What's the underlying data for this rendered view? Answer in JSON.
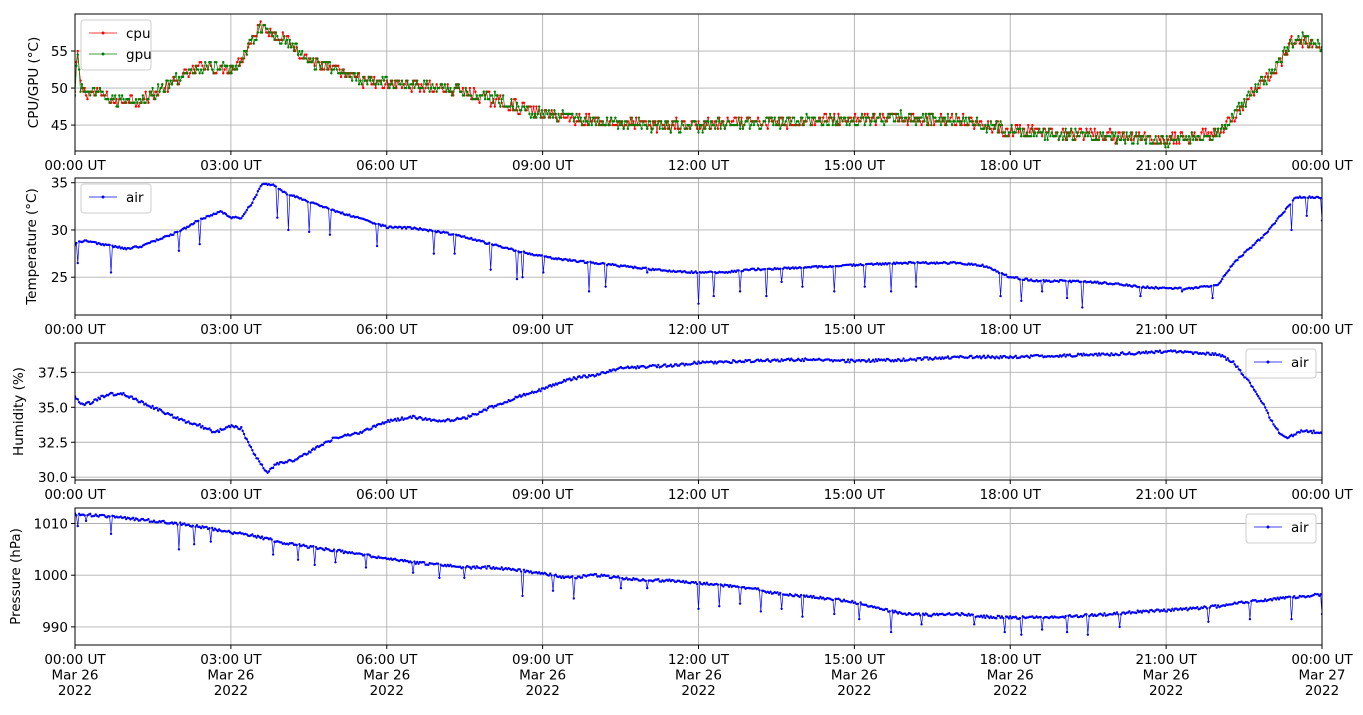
{
  "chart_data": [
    {
      "type": "line",
      "ylabel": "CPU/GPU (°C)",
      "ylim": [
        41.5,
        60.0
      ],
      "yticks": [
        45,
        50,
        55
      ],
      "ytick_labels": [
        "45",
        "50",
        "55"
      ],
      "xlim": [
        0,
        24
      ],
      "xticks": [
        0,
        3,
        6,
        9,
        12,
        15,
        18,
        21,
        24
      ],
      "xtick_labels": [
        "00:00 UT",
        "03:00 UT",
        "06:00 UT",
        "09:00 UT",
        "12:00 UT",
        "15:00 UT",
        "18:00 UT",
        "21:00 UT",
        "00:00 UT"
      ],
      "grid": true,
      "legend_loc": "upper left",
      "series": [
        {
          "name": "cpu",
          "color": "#ff0000",
          "x": [
            0,
            0.05,
            0.1,
            0.2,
            0.5,
            0.8,
            1.0,
            1.3,
            1.6,
            2.0,
            2.3,
            2.5,
            2.7,
            3.0,
            3.2,
            3.4,
            3.55,
            3.7,
            4.0,
            4.3,
            4.6,
            5.0,
            5.5,
            6.0,
            6.5,
            7.0,
            7.5,
            8.0,
            8.5,
            9.0,
            9.5,
            10.0,
            11.0,
            12.0,
            13.0,
            14.0,
            15.0,
            16.0,
            17.0,
            17.5,
            18.0,
            19.0,
            20.0,
            21.0,
            21.5,
            22.0,
            22.3,
            22.6,
            22.9,
            23.2,
            23.4,
            23.6,
            24.0
          ],
          "values": [
            49.5,
            55.2,
            50.5,
            49.5,
            49.2,
            48.0,
            48.5,
            48.3,
            49.5,
            51.2,
            52.5,
            53.2,
            52.5,
            52.5,
            54.0,
            56.5,
            58.5,
            58.0,
            56.8,
            55.0,
            53.5,
            52.3,
            51.0,
            50.5,
            50.5,
            50.0,
            49.5,
            48.5,
            47.5,
            46.5,
            46.0,
            45.5,
            45.0,
            45.0,
            45.3,
            45.5,
            45.8,
            46.0,
            45.8,
            45.0,
            44.3,
            43.8,
            43.5,
            43.0,
            43.5,
            44.0,
            46.0,
            49.0,
            51.0,
            53.5,
            56.0,
            56.5,
            55.5
          ]
        },
        {
          "name": "gpu",
          "color": "#008000",
          "x": [
            0,
            0.05,
            0.1,
            0.2,
            0.5,
            0.8,
            1.0,
            1.3,
            1.6,
            2.0,
            2.3,
            2.5,
            2.7,
            3.0,
            3.2,
            3.4,
            3.55,
            3.7,
            4.0,
            4.3,
            4.6,
            5.0,
            5.5,
            6.0,
            6.5,
            7.0,
            7.5,
            8.0,
            8.5,
            9.0,
            9.5,
            10.0,
            11.0,
            12.0,
            13.0,
            14.0,
            15.0,
            16.0,
            17.0,
            17.5,
            18.0,
            19.0,
            20.0,
            21.0,
            21.5,
            22.0,
            22.3,
            22.6,
            22.9,
            23.2,
            23.4,
            23.6,
            24.0
          ],
          "values": [
            49.0,
            55.5,
            50.0,
            49.5,
            49.0,
            48.2,
            48.5,
            48.5,
            49.5,
            51.5,
            52.3,
            53.0,
            52.8,
            52.5,
            53.8,
            56.3,
            58.0,
            57.8,
            56.5,
            55.0,
            53.5,
            52.5,
            51.2,
            50.7,
            50.5,
            50.2,
            49.5,
            48.8,
            47.5,
            46.5,
            46.0,
            45.5,
            45.0,
            44.8,
            45.3,
            45.5,
            45.8,
            46.0,
            45.8,
            45.0,
            44.3,
            43.8,
            43.3,
            43.0,
            43.3,
            44.0,
            46.2,
            49.0,
            51.2,
            53.8,
            56.2,
            56.8,
            55.5
          ]
        }
      ]
    },
    {
      "type": "line",
      "ylabel": "Temperature (°C)",
      "ylim": [
        21.0,
        35.5
      ],
      "yticks": [
        25,
        30,
        35
      ],
      "ytick_labels": [
        "25",
        "30",
        "35"
      ],
      "xlim": [
        0,
        24
      ],
      "xticks": [
        0,
        3,
        6,
        9,
        12,
        15,
        18,
        21,
        24
      ],
      "xtick_labels": [
        "00:00 UT",
        "03:00 UT",
        "06:00 UT",
        "09:00 UT",
        "12:00 UT",
        "15:00 UT",
        "18:00 UT",
        "21:00 UT",
        "00:00 UT"
      ],
      "grid": true,
      "legend_loc": "upper left",
      "series": [
        {
          "name": "air",
          "color": "#0000ff",
          "x": [
            0,
            0.1,
            0.3,
            0.5,
            0.8,
            1.0,
            1.3,
            1.6,
            2.0,
            2.3,
            2.6,
            2.8,
            3.0,
            3.2,
            3.4,
            3.6,
            3.8,
            4.0,
            4.5,
            5.0,
            5.5,
            6.0,
            6.5,
            7.0,
            7.5,
            8.0,
            8.5,
            9.0,
            9.5,
            10.0,
            10.5,
            11.0,
            11.5,
            12.0,
            12.5,
            13.0,
            14.0,
            15.0,
            16.0,
            17.0,
            17.5,
            18.0,
            18.5,
            19.0,
            19.5,
            20.0,
            20.5,
            21.0,
            21.5,
            22.0,
            22.3,
            22.6,
            22.9,
            23.2,
            23.5,
            24.0
          ],
          "values": [
            28.5,
            28.8,
            28.8,
            28.5,
            28.2,
            28.0,
            28.3,
            29.0,
            29.8,
            30.8,
            31.5,
            32.0,
            31.3,
            31.3,
            32.8,
            34.9,
            34.8,
            34.0,
            33.0,
            32.0,
            31.2,
            30.3,
            30.2,
            29.8,
            29.3,
            28.5,
            27.8,
            27.2,
            26.8,
            26.5,
            26.2,
            25.9,
            25.6,
            25.5,
            25.5,
            25.8,
            26.0,
            26.3,
            26.5,
            26.5,
            26.2,
            25.0,
            24.6,
            24.6,
            24.5,
            24.3,
            24.0,
            23.8,
            23.8,
            24.2,
            26.5,
            28.0,
            29.5,
            31.5,
            33.5,
            33.4
          ],
          "dips": [
            [
              0.05,
              26.5
            ],
            [
              0.7,
              25.5
            ],
            [
              2.0,
              27.8
            ],
            [
              2.4,
              28.5
            ],
            [
              3.9,
              31.3
            ],
            [
              4.1,
              30.0
            ],
            [
              4.5,
              29.8
            ],
            [
              4.9,
              29.5
            ],
            [
              5.8,
              28.3
            ],
            [
              6.9,
              27.5
            ],
            [
              7.3,
              27.5
            ],
            [
              8.0,
              25.8
            ],
            [
              8.5,
              24.8
            ],
            [
              8.6,
              25.0
            ],
            [
              9.0,
              25.5
            ],
            [
              9.9,
              23.5
            ],
            [
              10.2,
              24.0
            ],
            [
              11.0,
              25.5
            ],
            [
              12.0,
              22.2
            ],
            [
              12.3,
              23.0
            ],
            [
              12.8,
              23.5
            ],
            [
              13.3,
              23.0
            ],
            [
              13.6,
              24.5
            ],
            [
              14.0,
              24.0
            ],
            [
              14.6,
              23.5
            ],
            [
              15.2,
              24.0
            ],
            [
              15.7,
              23.5
            ],
            [
              16.2,
              24.0
            ],
            [
              17.8,
              23.0
            ],
            [
              18.2,
              22.5
            ],
            [
              18.6,
              23.5
            ],
            [
              19.1,
              22.8
            ],
            [
              19.4,
              21.8
            ],
            [
              20.5,
              23.0
            ],
            [
              21.3,
              23.5
            ],
            [
              21.9,
              22.8
            ],
            [
              23.4,
              30.0
            ],
            [
              23.7,
              31.5
            ],
            [
              24.0,
              31.0
            ]
          ]
        }
      ]
    },
    {
      "type": "line",
      "ylabel": "Humidity (%)",
      "ylim": [
        29.8,
        39.6
      ],
      "yticks": [
        30.0,
        32.5,
        35.0,
        37.5
      ],
      "ytick_labels": [
        "30.0",
        "32.5",
        "35.0",
        "37.5"
      ],
      "xlim": [
        0,
        24
      ],
      "xticks": [
        0,
        3,
        6,
        9,
        12,
        15,
        18,
        21,
        24
      ],
      "xtick_labels": [
        "00:00 UT",
        "03:00 UT",
        "06:00 UT",
        "09:00 UT",
        "12:00 UT",
        "15:00 UT",
        "18:00 UT",
        "21:00 UT",
        "00:00 UT"
      ],
      "grid": true,
      "legend_loc": "upper right",
      "series": [
        {
          "name": "air",
          "color": "#0000ff",
          "x": [
            0,
            0.1,
            0.3,
            0.6,
            0.9,
            1.2,
            1.5,
            1.8,
            2.1,
            2.4,
            2.7,
            3.0,
            3.2,
            3.4,
            3.6,
            3.7,
            3.9,
            4.2,
            4.5,
            5.0,
            5.5,
            6.0,
            6.5,
            7.0,
            7.5,
            8.0,
            8.5,
            9.0,
            9.5,
            10.0,
            10.5,
            11.0,
            11.5,
            12.0,
            13.0,
            14.0,
            15.0,
            16.0,
            17.0,
            18.0,
            19.0,
            20.0,
            21.0,
            21.5,
            22.0,
            22.3,
            22.6,
            22.9,
            23.1,
            23.3,
            23.6,
            24.0
          ],
          "values": [
            35.8,
            35.2,
            35.3,
            35.9,
            36.0,
            35.5,
            35.0,
            34.5,
            34.0,
            33.7,
            33.2,
            33.7,
            33.5,
            32.0,
            30.8,
            30.4,
            31.0,
            31.2,
            31.8,
            32.8,
            33.2,
            34.0,
            34.3,
            34.0,
            34.2,
            35.0,
            35.7,
            36.3,
            37.0,
            37.3,
            37.8,
            37.9,
            38.0,
            38.2,
            38.3,
            38.4,
            38.3,
            38.4,
            38.6,
            38.6,
            38.7,
            38.8,
            39.0,
            38.9,
            38.8,
            38.2,
            36.8,
            35.0,
            33.5,
            32.8,
            33.3,
            33.2
          ]
        }
      ]
    },
    {
      "type": "line",
      "ylabel": "Pressure (hPa)",
      "ylim": [
        986.5,
        1013.0
      ],
      "yticks": [
        990,
        1000,
        1010
      ],
      "ytick_labels": [
        "990",
        "1000",
        "1010"
      ],
      "xlim": [
        0,
        24
      ],
      "xticks": [
        0,
        3,
        6,
        9,
        12,
        15,
        18,
        21,
        24
      ],
      "xtick_labels": [
        [
          "00:00 UT",
          "Mar 26",
          "2022"
        ],
        [
          "03:00 UT",
          "Mar 26",
          "2022"
        ],
        [
          "06:00 UT",
          "Mar 26",
          "2022"
        ],
        [
          "09:00 UT",
          "Mar 26",
          "2022"
        ],
        [
          "12:00 UT",
          "Mar 26",
          "2022"
        ],
        [
          "15:00 UT",
          "Mar 26",
          "2022"
        ],
        [
          "18:00 UT",
          "Mar 26",
          "2022"
        ],
        [
          "21:00 UT",
          "Mar 26",
          "2022"
        ],
        [
          "00:00 UT",
          "Mar 27",
          "2022"
        ]
      ],
      "grid": true,
      "legend_loc": "upper right",
      "series": [
        {
          "name": "air",
          "color": "#0000ff",
          "x": [
            0,
            0.5,
            1.0,
            1.5,
            2.0,
            2.5,
            3.0,
            3.5,
            4.0,
            4.5,
            5.0,
            5.5,
            6.0,
            6.5,
            7.0,
            7.5,
            8.0,
            8.5,
            9.0,
            9.5,
            10.0,
            10.5,
            11.0,
            11.5,
            12.0,
            12.5,
            13.0,
            13.5,
            14.0,
            14.5,
            15.0,
            15.5,
            16.0,
            16.5,
            17.0,
            17.5,
            18.0,
            18.5,
            19.0,
            19.5,
            20.0,
            20.5,
            21.0,
            21.5,
            22.0,
            22.5,
            23.0,
            23.5,
            24.0
          ],
          "values": [
            1011.8,
            1011.5,
            1011.0,
            1010.5,
            1010.0,
            1009.2,
            1008.3,
            1007.5,
            1006.3,
            1005.5,
            1004.8,
            1004.0,
            1003.2,
            1002.5,
            1002.0,
            1001.5,
            1001.5,
            1001.0,
            1000.3,
            999.5,
            1000.0,
            999.5,
            999.0,
            999.0,
            998.5,
            998.0,
            997.5,
            996.5,
            996.0,
            995.5,
            994.8,
            993.5,
            992.5,
            992.3,
            992.5,
            992.0,
            991.8,
            991.8,
            992.0,
            992.2,
            992.5,
            993.0,
            993.2,
            993.5,
            994.0,
            994.8,
            995.3,
            995.8,
            996.3
          ],
          "dips": [
            [
              0.05,
              1009.5
            ],
            [
              0.2,
              1010.5
            ],
            [
              0.7,
              1008.0
            ],
            [
              2.0,
              1005.0
            ],
            [
              2.3,
              1006.0
            ],
            [
              2.6,
              1006.5
            ],
            [
              3.8,
              1004.0
            ],
            [
              4.3,
              1003.0
            ],
            [
              4.6,
              1002.0
            ],
            [
              5.0,
              1002.5
            ],
            [
              5.6,
              1001.5
            ],
            [
              6.5,
              1000.5
            ],
            [
              7.0,
              999.5
            ],
            [
              7.5,
              999.5
            ],
            [
              8.6,
              996.0
            ],
            [
              9.2,
              997.0
            ],
            [
              9.6,
              995.5
            ],
            [
              10.5,
              997.5
            ],
            [
              11.0,
              997.5
            ],
            [
              12.0,
              993.5
            ],
            [
              12.4,
              994.0
            ],
            [
              12.8,
              994.5
            ],
            [
              13.2,
              993.0
            ],
            [
              13.6,
              993.5
            ],
            [
              14.0,
              992.0
            ],
            [
              14.6,
              992.5
            ],
            [
              15.1,
              991.5
            ],
            [
              15.7,
              989.0
            ],
            [
              16.3,
              990.5
            ],
            [
              17.3,
              990.5
            ],
            [
              17.9,
              989.0
            ],
            [
              18.2,
              988.5
            ],
            [
              18.6,
              989.5
            ],
            [
              19.1,
              989.0
            ],
            [
              19.5,
              988.5
            ],
            [
              20.1,
              990.0
            ],
            [
              21.8,
              991.0
            ],
            [
              22.6,
              991.5
            ],
            [
              23.4,
              991.5
            ],
            [
              24.0,
              992.5
            ]
          ]
        }
      ]
    }
  ]
}
